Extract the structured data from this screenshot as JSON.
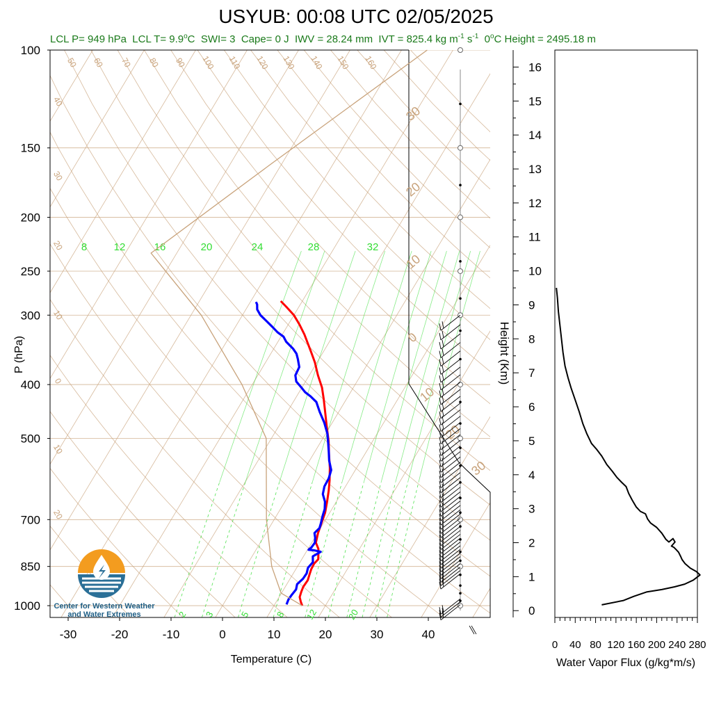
{
  "title": "USYUB: 00:08 UTC 02/05/2025",
  "subtitle": {
    "lcl_p": "LCL P= 949 hPa",
    "lcl_t": "LCL T= 9.9",
    "lcl_t_unit": "C",
    "swi": "SWI= 3",
    "cape": "Cape= 0 J",
    "iwv": "IWV = 28.24 mm",
    "ivt_prefix": "IVT = 825.4 kg m",
    "ivt_sup1": "-1",
    "ivt_mid": " s",
    "ivt_sup2": "-1",
    "zero_height_prefix": "0",
    "zero_height": "C Height = 2495.18 m"
  },
  "logo": {
    "line1": "Center for Western Weather",
    "line2": "and Water Extremes"
  },
  "colors": {
    "temperature": "#ff0000",
    "dewpoint": "#0000ff",
    "mixing_ratio": "#33dd33",
    "dry_adiabat": "#c8a27a",
    "isotherm": "#c8a27a",
    "parcel": "#c8a27a",
    "subtitle": "#1a7a1a",
    "logo_orange": "#f39c1f",
    "logo_blue": "#2a6f97"
  },
  "chart_data": [
    {
      "type": "line",
      "name": "skew-t",
      "xlabel": "Temperature (C)",
      "ylabel": "P (hPa)",
      "y2label": "Height (Km)",
      "x_ticks": [
        "-30",
        "-20",
        "-10",
        "0",
        "10",
        "20",
        "30",
        "40"
      ],
      "y_ticks": [
        "100",
        "150",
        "200",
        "250",
        "300",
        "400",
        "500",
        "700",
        "850",
        "1000"
      ],
      "height_ticks": [
        "0",
        "1",
        "2",
        "3",
        "4",
        "5",
        "6",
        "7",
        "8",
        "9",
        "10",
        "11",
        "12",
        "13",
        "14",
        "15",
        "16"
      ],
      "xlim": [
        -34,
        52
      ],
      "ylim": [
        1050,
        100
      ],
      "yscale": "log",
      "mixing_ratio_labels_top": [
        "8",
        "12",
        "16",
        "20",
        "24",
        "28",
        "32"
      ],
      "mixing_ratio_labels_bottom": [
        "2",
        "3",
        "5",
        "8",
        "12",
        "20"
      ],
      "dry_adiabat_labels": [
        "50",
        "60",
        "70",
        "80",
        "90",
        "100",
        "110",
        "120",
        "130",
        "140",
        "150",
        "160"
      ],
      "isotherm_labels": [
        "40",
        "30",
        "20",
        "10",
        "0",
        "10",
        "20"
      ],
      "isotherm_labels_right": [
        "30",
        "20",
        "10",
        "0",
        "10",
        "20",
        "30"
      ],
      "series": [
        {
          "name": "temperature",
          "points": [
            [
              15.5,
              1000
            ],
            [
              14.8,
              985
            ],
            [
              14.0,
              965
            ],
            [
              13.7,
              945
            ],
            [
              13.5,
              925
            ],
            [
              13.6,
              900
            ],
            [
              13.3,
              880
            ],
            [
              13.0,
              860
            ],
            [
              12.9,
              840
            ],
            [
              13.2,
              825
            ],
            [
              12.7,
              810
            ],
            [
              12.0,
              790
            ],
            [
              10.8,
              770
            ],
            [
              10.1,
              740
            ],
            [
              9.6,
              710
            ],
            [
              9.1,
              680
            ],
            [
              8.2,
              650
            ],
            [
              7.2,
              620
            ],
            [
              6.2,
              595
            ],
            [
              4.8,
              565
            ],
            [
              3.1,
              535
            ],
            [
              1.4,
              505
            ],
            [
              -0.7,
              475
            ],
            [
              -2.5,
              450
            ],
            [
              -4.4,
              425
            ],
            [
              -6.1,
              405
            ],
            [
              -8.3,
              385
            ],
            [
              -10.4,
              365
            ],
            [
              -12.3,
              350
            ],
            [
              -13.9,
              338
            ],
            [
              -15.7,
              325
            ],
            [
              -17.8,
              312
            ],
            [
              -20.0,
              300
            ],
            [
              -22.4,
              290
            ],
            [
              -24.2,
              283
            ]
          ]
        },
        {
          "name": "dewpoint",
          "points": [
            [
              12.3,
              995
            ],
            [
              12.1,
              975
            ],
            [
              12.2,
              955
            ],
            [
              12.4,
              935
            ],
            [
              12.0,
              915
            ],
            [
              12.5,
              895
            ],
            [
              12.6,
              875
            ],
            [
              12.2,
              855
            ],
            [
              12.5,
              835
            ],
            [
              11.8,
              815
            ],
            [
              12.8,
              800
            ],
            [
              11.4,
              795
            ],
            [
              10.2,
              793
            ],
            [
              10.5,
              785
            ],
            [
              10.6,
              770
            ],
            [
              10.1,
              755
            ],
            [
              9.4,
              740
            ],
            [
              9.8,
              725
            ],
            [
              9.5,
              710
            ],
            [
              9.0,
              690
            ],
            [
              8.6,
              670
            ],
            [
              7.8,
              650
            ],
            [
              6.5,
              630
            ],
            [
              5.9,
              610
            ],
            [
              5.8,
              590
            ],
            [
              5.3,
              570
            ],
            [
              3.8,
              548
            ],
            [
              2.8,
              530
            ],
            [
              1.6,
              510
            ],
            [
              0.3,
              490
            ],
            [
              -1.6,
              468
            ],
            [
              -3.7,
              448
            ],
            [
              -5.5,
              430
            ],
            [
              -7.3,
              420
            ],
            [
              -8.8,
              413
            ],
            [
              -10.1,
              405
            ],
            [
              -11.8,
              395
            ],
            [
              -12.7,
              385
            ],
            [
              -12.9,
              372
            ],
            [
              -14.1,
              360
            ],
            [
              -15.0,
              352
            ],
            [
              -16.2,
              345
            ],
            [
              -18.4,
              335
            ],
            [
              -19.5,
              328
            ],
            [
              -21.2,
              322
            ],
            [
              -22.8,
              315
            ],
            [
              -24.5,
              308
            ],
            [
              -26.5,
              300
            ],
            [
              -27.8,
              293
            ],
            [
              -28.4,
              287
            ],
            [
              -28.9,
              284
            ]
          ]
        },
        {
          "name": "parcel",
          "points": [
            [
              15.5,
              1000
            ],
            [
              9.9,
              949
            ],
            [
              5.0,
              850
            ],
            [
              -1.5,
              700
            ],
            [
              -11.0,
              500
            ],
            [
              -22.0,
              400
            ],
            [
              -38.0,
              300
            ],
            [
              -55.0,
              232
            ],
            [
              -42.0,
              160
            ],
            [
              -25.0,
              100
            ]
          ]
        }
      ]
    },
    {
      "type": "line",
      "name": "water-vapor-flux",
      "xlabel": "Water Vapor Flux (g/kg*m/s)",
      "ylabel": "",
      "x_ticks": [
        "0",
        "40",
        "80",
        "120",
        "160",
        "200",
        "240",
        "280"
      ],
      "xlim": [
        0,
        280
      ],
      "ylim": [
        0,
        16.5
      ],
      "series": [
        {
          "name": "flux",
          "points": [
            [
              92,
              0.17
            ],
            [
              135,
              0.3
            ],
            [
              155,
              0.42
            ],
            [
              180,
              0.55
            ],
            [
              210,
              0.62
            ],
            [
              235,
              0.7
            ],
            [
              255,
              0.78
            ],
            [
              272,
              0.9
            ],
            [
              285,
              1.05
            ],
            [
              278,
              1.15
            ],
            [
              266,
              1.25
            ],
            [
              256,
              1.38
            ],
            [
              250,
              1.5
            ],
            [
              247,
              1.6
            ],
            [
              243,
              1.72
            ],
            [
              238,
              1.8
            ],
            [
              234,
              1.86
            ],
            [
              229,
              1.9
            ],
            [
              236,
              2.02
            ],
            [
              232,
              2.12
            ],
            [
              224,
              2.02
            ],
            [
              218,
              2.1
            ],
            [
              210,
              2.28
            ],
            [
              200,
              2.45
            ],
            [
              188,
              2.58
            ],
            [
              182,
              2.7
            ],
            [
              178,
              2.85
            ],
            [
              168,
              2.92
            ],
            [
              160,
              3.05
            ],
            [
              152,
              3.25
            ],
            [
              145,
              3.45
            ],
            [
              140,
              3.65
            ],
            [
              131,
              3.78
            ],
            [
              122,
              3.92
            ],
            [
              113,
              4.1
            ],
            [
              102,
              4.3
            ],
            [
              92,
              4.55
            ],
            [
              82,
              4.75
            ],
            [
              72,
              4.92
            ],
            [
              63,
              5.2
            ],
            [
              55,
              5.5
            ],
            [
              48,
              5.85
            ],
            [
              40,
              6.2
            ],
            [
              32,
              6.55
            ],
            [
              26,
              6.85
            ],
            [
              20,
              7.2
            ],
            [
              16,
              7.6
            ],
            [
              13,
              8.0
            ],
            [
              10,
              8.4
            ],
            [
              7,
              8.8
            ],
            [
              5,
              9.2
            ],
            [
              3,
              9.5
            ]
          ]
        }
      ]
    }
  ]
}
